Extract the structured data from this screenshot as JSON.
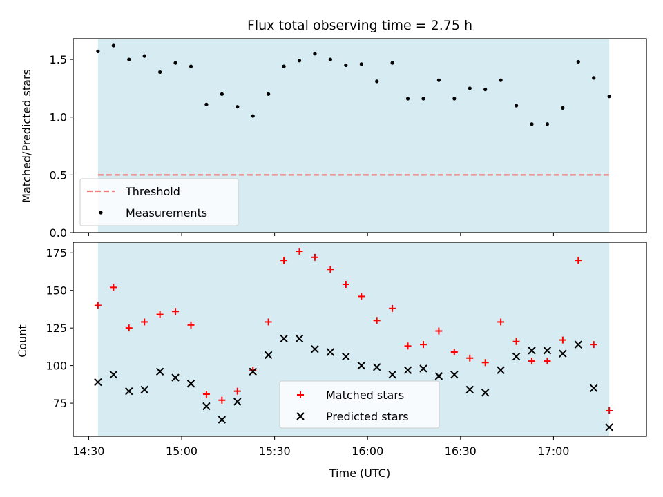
{
  "colors": {
    "span_fill": "#add8e6",
    "threshold": "#f08080",
    "measurement": "#000000",
    "matched": "#ff0000",
    "predicted": "#000000"
  },
  "chart_data": [
    {
      "type": "scatter",
      "title": "Flux total observing time = 2.75 h",
      "xlabel": "",
      "ylabel": "Matched/Predicted stars",
      "ylim": [
        0,
        1.68
      ],
      "yticks": [
        "0.0",
        "0.5",
        "1.0",
        "1.5"
      ],
      "xlim_minutes": [
        -5,
        180
      ],
      "observing_span_minutes": [
        3,
        168
      ],
      "threshold": {
        "label": "Threshold",
        "value": 0.5
      },
      "legend": {
        "position": "lower-left",
        "entries": [
          "Threshold",
          "Measurements"
        ]
      },
      "series": [
        {
          "name": "Measurements",
          "x": [
            3,
            8,
            13,
            18,
            23,
            28,
            33,
            38,
            43,
            48,
            53,
            58,
            63,
            68,
            73,
            78,
            83,
            88,
            93,
            98,
            103,
            108,
            113,
            118,
            123,
            128,
            133,
            138,
            143,
            148,
            153,
            158,
            163,
            168
          ],
          "y": [
            1.57,
            1.62,
            1.5,
            1.53,
            1.39,
            1.47,
            1.44,
            1.11,
            1.2,
            1.09,
            1.01,
            1.2,
            1.44,
            1.49,
            1.55,
            1.5,
            1.45,
            1.46,
            1.31,
            1.47,
            1.16,
            1.16,
            1.32,
            1.16,
            1.25,
            1.24,
            1.32,
            1.1,
            0.94,
            0.94,
            1.08,
            1.48,
            1.34,
            1.18
          ]
        }
      ]
    },
    {
      "type": "scatter",
      "title": "",
      "xlabel": "Time (UTC)",
      "ylabel": "Count",
      "ylim": [
        53,
        182
      ],
      "yticks": [
        "75",
        "100",
        "125",
        "150",
        "175"
      ],
      "xlim_minutes": [
        -5,
        180
      ],
      "xticks": [
        "14:30",
        "15:00",
        "15:30",
        "16:00",
        "16:30",
        "17:00"
      ],
      "observing_span_minutes": [
        3,
        168
      ],
      "legend": {
        "position": "lower-center",
        "entries": [
          "Matched stars",
          "Predicted stars"
        ]
      },
      "series": [
        {
          "name": "Matched stars",
          "x": [
            3,
            8,
            13,
            18,
            23,
            28,
            33,
            38,
            43,
            48,
            53,
            58,
            63,
            68,
            73,
            78,
            83,
            88,
            93,
            98,
            103,
            108,
            113,
            118,
            123,
            128,
            133,
            138,
            143,
            148,
            153,
            158,
            163,
            168
          ],
          "y": [
            140,
            152,
            125,
            129,
            134,
            136,
            127,
            81,
            77,
            83,
            97,
            129,
            170,
            176,
            172,
            164,
            154,
            146,
            130,
            138,
            113,
            114,
            123,
            109,
            105,
            102,
            129,
            116,
            103,
            103,
            117,
            170,
            114,
            70
          ]
        },
        {
          "name": "Predicted stars",
          "x": [
            3,
            8,
            13,
            18,
            23,
            28,
            33,
            38,
            43,
            48,
            53,
            58,
            63,
            68,
            73,
            78,
            83,
            88,
            93,
            98,
            103,
            108,
            113,
            118,
            123,
            128,
            133,
            138,
            143,
            148,
            153,
            158,
            163,
            168
          ],
          "y": [
            89,
            94,
            83,
            84,
            96,
            92,
            88,
            73,
            64,
            76,
            96,
            107,
            118,
            118,
            111,
            109,
            106,
            100,
            99,
            94,
            97,
            98,
            93,
            94,
            84,
            82,
            97,
            106,
            110,
            110,
            108,
            114,
            85,
            59
          ]
        }
      ]
    }
  ]
}
